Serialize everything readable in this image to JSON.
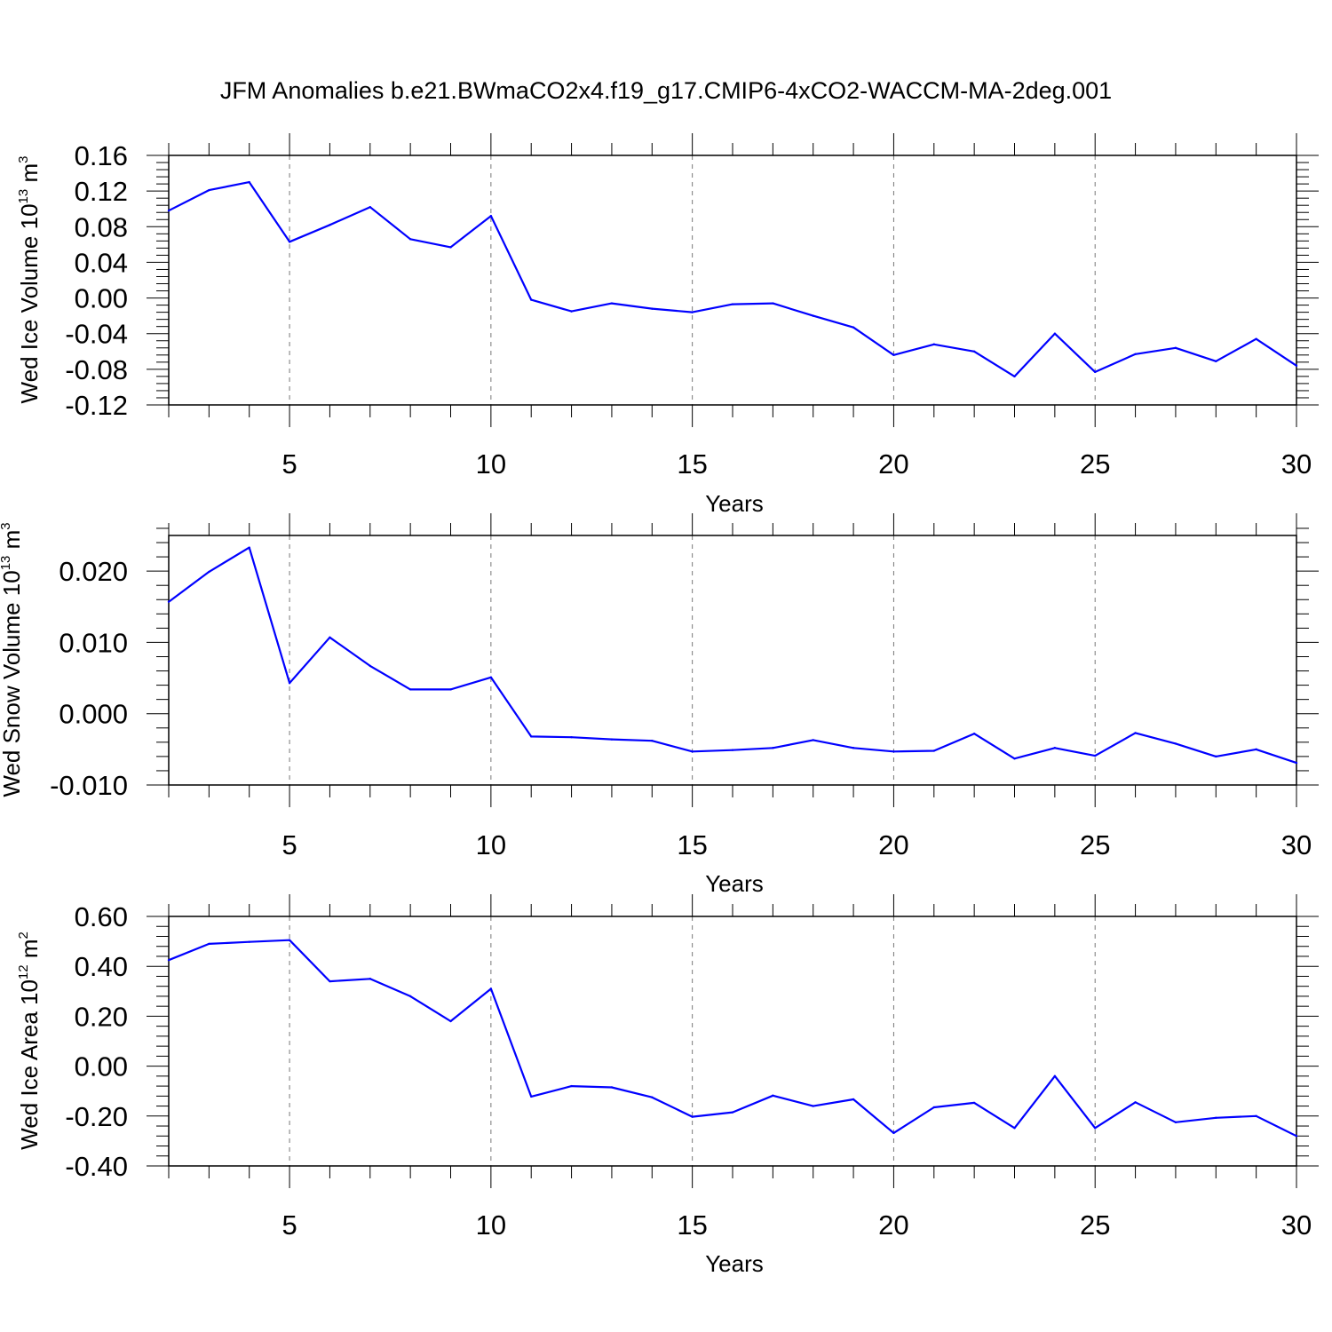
{
  "title": "JFM Anomalies b.e21.BWmaCO2x4.f19_g17.CMIP6-4xCO2-WACCM-MA-2deg.001",
  "colors": {
    "line": "#0000ff",
    "axis": "#000000",
    "grid": "#777777"
  },
  "chart_data": [
    {
      "type": "line",
      "ylabel": {
        "text": "Wed Ice Volume 10",
        "exp": "13",
        "unit": " m",
        "unit_exp": "3"
      },
      "xlabel": "Years",
      "xlim": [
        2,
        30
      ],
      "ylim": [
        -0.12,
        0.16
      ],
      "xticks": [
        5,
        10,
        15,
        20,
        25,
        30
      ],
      "yticks": [
        -0.12,
        -0.08,
        -0.04,
        0.0,
        0.04,
        0.08,
        0.12,
        0.16
      ],
      "ytick_labels": [
        "-0.12",
        "-0.08",
        "-0.04",
        "0.00",
        "0.04",
        "0.08",
        "0.12",
        "0.16"
      ],
      "x": [
        2,
        3,
        4,
        5,
        6,
        7,
        8,
        9,
        10,
        11,
        12,
        13,
        14,
        15,
        16,
        17,
        18,
        19,
        20,
        21,
        22,
        23,
        24,
        25,
        26,
        27,
        28,
        29,
        30
      ],
      "y": [
        0.098,
        0.121,
        0.13,
        0.063,
        0.082,
        0.102,
        0.066,
        0.057,
        0.092,
        -0.002,
        -0.015,
        -0.006,
        -0.012,
        -0.016,
        -0.007,
        -0.006,
        -0.02,
        -0.033,
        -0.064,
        -0.052,
        -0.06,
        -0.088,
        -0.04,
        -0.083,
        -0.063,
        -0.056,
        -0.071,
        -0.046,
        -0.076
      ]
    },
    {
      "type": "line",
      "ylabel": {
        "text": "Wed Snow Volume 10",
        "exp": "13",
        "unit": " m",
        "unit_exp": "3"
      },
      "xlabel": "Years",
      "xlim": [
        2,
        30
      ],
      "ylim": [
        -0.01,
        0.025
      ],
      "xticks": [
        5,
        10,
        15,
        20,
        25,
        30
      ],
      "yticks": [
        -0.01,
        0.0,
        0.01,
        0.02
      ],
      "ytick_labels": [
        "-0.010",
        "0.000",
        "0.010",
        "0.020"
      ],
      "x": [
        2,
        3,
        4,
        5,
        6,
        7,
        8,
        9,
        10,
        11,
        12,
        13,
        14,
        15,
        16,
        17,
        18,
        19,
        20,
        21,
        22,
        23,
        24,
        25,
        26,
        27,
        28,
        29,
        30
      ],
      "y": [
        0.0157,
        0.0199,
        0.0233,
        0.0043,
        0.0107,
        0.0067,
        0.0034,
        0.0034,
        0.0051,
        -0.0032,
        -0.0033,
        -0.0036,
        -0.0038,
        -0.0053,
        -0.0051,
        -0.0048,
        -0.0037,
        -0.0048,
        -0.0053,
        -0.0052,
        -0.0028,
        -0.0063,
        -0.0048,
        -0.0059,
        -0.0027,
        -0.0042,
        -0.006,
        -0.005,
        -0.0069
      ]
    },
    {
      "type": "line",
      "ylabel": {
        "text": "Wed Ice Area 10",
        "exp": "12",
        "unit": " m",
        "unit_exp": "2"
      },
      "xlabel": "Years",
      "xlim": [
        2,
        30
      ],
      "ylim": [
        -0.4,
        0.6
      ],
      "xticks": [
        5,
        10,
        15,
        20,
        25,
        30
      ],
      "yticks": [
        -0.4,
        -0.2,
        0.0,
        0.2,
        0.4,
        0.6
      ],
      "ytick_labels": [
        "-0.40",
        "-0.20",
        "0.00",
        "0.20",
        "0.40",
        "0.60"
      ],
      "x": [
        2,
        3,
        4,
        5,
        6,
        7,
        8,
        9,
        10,
        11,
        12,
        13,
        14,
        15,
        16,
        17,
        18,
        19,
        20,
        21,
        22,
        23,
        24,
        25,
        26,
        27,
        28,
        29,
        30
      ],
      "y": [
        0.425,
        0.49,
        0.498,
        0.505,
        0.34,
        0.35,
        0.28,
        0.18,
        0.31,
        -0.122,
        -0.08,
        -0.085,
        -0.125,
        -0.203,
        -0.185,
        -0.118,
        -0.16,
        -0.133,
        -0.268,
        -0.165,
        -0.147,
        -0.248,
        -0.04,
        -0.248,
        -0.145,
        -0.225,
        -0.207,
        -0.2,
        -0.28
      ]
    }
  ]
}
